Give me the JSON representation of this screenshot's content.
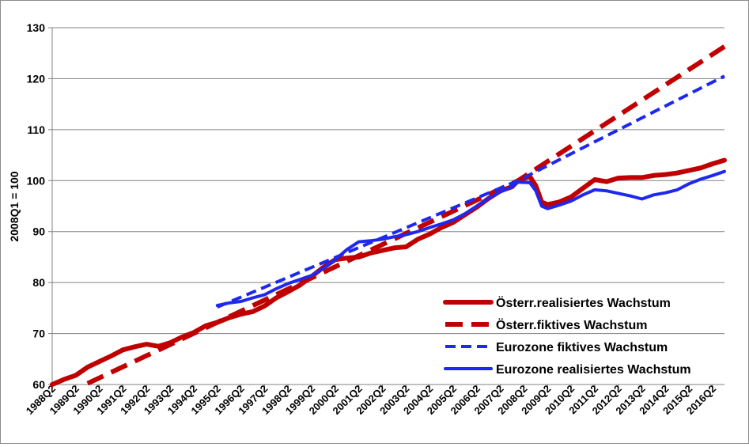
{
  "chart_data": {
    "type": "line",
    "title": "",
    "xlabel": "",
    "ylabel": "2008Q1 = 100",
    "ylim": [
      60,
      130
    ],
    "yticks": [
      60,
      70,
      80,
      90,
      100,
      110,
      120,
      130
    ],
    "grid": "horizontal",
    "legend_position": "bottom-right",
    "x_tick_labels": [
      "1988Q2",
      "1989Q2",
      "1990Q2",
      "1991Q2",
      "1992Q2",
      "1993Q2",
      "1994Q2",
      "1995Q2",
      "1996Q2",
      "1997Q2",
      "1998Q2",
      "1999Q2",
      "2000Q2",
      "2001Q2",
      "2002Q2",
      "2003Q2",
      "2004Q2",
      "2005Q2",
      "2006Q2",
      "2007Q2",
      "2008Q2",
      "2009Q2",
      "2010Q2",
      "2011Q2",
      "2012Q2",
      "2013Q2",
      "2014Q2",
      "2015Q2",
      "2016Q2"
    ],
    "series": [
      {
        "name": "Österr.realisiertes Wachstum",
        "color": "#c00000",
        "style": "solid-thick",
        "points": [
          [
            "1988Q2",
            60.0
          ],
          [
            "1988Q4",
            61.0
          ],
          [
            "1989Q2",
            61.8
          ],
          [
            "1989Q4",
            63.4
          ],
          [
            "1990Q2",
            64.5
          ],
          [
            "1990Q4",
            65.6
          ],
          [
            "1991Q2",
            66.8
          ],
          [
            "1991Q4",
            67.4
          ],
          [
            "1992Q2",
            67.9
          ],
          [
            "1992Q4",
            67.5
          ],
          [
            "1993Q2",
            68.2
          ],
          [
            "1993Q4",
            69.3
          ],
          [
            "1994Q2",
            70.2
          ],
          [
            "1994Q4",
            71.5
          ],
          [
            "1995Q2",
            72.2
          ],
          [
            "1995Q4",
            73.1
          ],
          [
            "1996Q2",
            73.8
          ],
          [
            "1996Q4",
            74.3
          ],
          [
            "1997Q2",
            75.4
          ],
          [
            "1997Q4",
            77.0
          ],
          [
            "1998Q2",
            78.2
          ],
          [
            "1998Q4",
            79.5
          ],
          [
            "1999Q2",
            81.2
          ],
          [
            "1999Q4",
            83.0
          ],
          [
            "2000Q2",
            84.5
          ],
          [
            "2000Q4",
            84.8
          ],
          [
            "2001Q2",
            85.0
          ],
          [
            "2001Q4",
            85.8
          ],
          [
            "2002Q2",
            86.3
          ],
          [
            "2002Q4",
            86.8
          ],
          [
            "2003Q2",
            87.0
          ],
          [
            "2003Q4",
            88.5
          ],
          [
            "2004Q2",
            89.5
          ],
          [
            "2004Q4",
            90.8
          ],
          [
            "2005Q2",
            91.8
          ],
          [
            "2005Q4",
            93.3
          ],
          [
            "2006Q2",
            94.8
          ],
          [
            "2006Q4",
            96.5
          ],
          [
            "2007Q2",
            98.0
          ],
          [
            "2007Q4",
            98.8
          ],
          [
            "2008Q1",
            100.0
          ],
          [
            "2008Q3",
            100.8
          ],
          [
            "2008Q4",
            99.0
          ],
          [
            "2009Q1",
            95.8
          ],
          [
            "2009Q2",
            95.3
          ],
          [
            "2009Q4",
            95.8
          ],
          [
            "2010Q2",
            96.8
          ],
          [
            "2010Q4",
            98.5
          ],
          [
            "2011Q2",
            100.2
          ],
          [
            "2011Q4",
            99.8
          ],
          [
            "2012Q2",
            100.5
          ],
          [
            "2012Q4",
            100.6
          ],
          [
            "2013Q2",
            100.6
          ],
          [
            "2013Q4",
            101.0
          ],
          [
            "2014Q2",
            101.2
          ],
          [
            "2014Q4",
            101.5
          ],
          [
            "2015Q2",
            102.0
          ],
          [
            "2015Q4",
            102.5
          ],
          [
            "2016Q2",
            103.3
          ],
          [
            "2016Q4",
            104.0
          ]
        ]
      },
      {
        "name": "Österr.fiktives Wachstum",
        "color": "#c00000",
        "style": "dashed-thick",
        "points": [
          [
            "1989Q4",
            60.2
          ],
          [
            "2008Q1",
            100.0
          ],
          [
            "2016Q4",
            126.3
          ]
        ]
      },
      {
        "name": "Eurozone fiktives Wachstum",
        "color": "#1e28f0",
        "style": "dashed",
        "points": [
          [
            "1995Q2",
            75.2
          ],
          [
            "2008Q1",
            100.0
          ],
          [
            "2016Q4",
            120.5
          ]
        ]
      },
      {
        "name": "Eurozone realisiertes Wachstum",
        "color": "#1e28f0",
        "style": "solid",
        "points": [
          [
            "1995Q2",
            75.5
          ],
          [
            "1995Q4",
            76.0
          ],
          [
            "1996Q2",
            76.3
          ],
          [
            "1996Q4",
            77.0
          ],
          [
            "1997Q2",
            77.6
          ],
          [
            "1997Q4",
            78.8
          ],
          [
            "1998Q2",
            79.8
          ],
          [
            "1998Q4",
            80.6
          ],
          [
            "1999Q2",
            81.4
          ],
          [
            "1999Q4",
            82.8
          ],
          [
            "2000Q2",
            84.5
          ],
          [
            "2000Q4",
            86.5
          ],
          [
            "2001Q2",
            88.0
          ],
          [
            "2001Q4",
            88.2
          ],
          [
            "2002Q2",
            88.5
          ],
          [
            "2002Q4",
            89.0
          ],
          [
            "2003Q2",
            89.4
          ],
          [
            "2003Q4",
            90.0
          ],
          [
            "2004Q2",
            90.8
          ],
          [
            "2004Q4",
            91.5
          ],
          [
            "2005Q2",
            92.3
          ],
          [
            "2005Q4",
            93.5
          ],
          [
            "2006Q2",
            95.0
          ],
          [
            "2006Q4",
            96.5
          ],
          [
            "2007Q2",
            97.8
          ],
          [
            "2007Q4",
            98.8
          ],
          [
            "2008Q1",
            99.7
          ],
          [
            "2008Q3",
            99.6
          ],
          [
            "2008Q4",
            98.0
          ],
          [
            "2009Q1",
            95.0
          ],
          [
            "2009Q2",
            94.5
          ],
          [
            "2009Q4",
            95.2
          ],
          [
            "2010Q2",
            96.0
          ],
          [
            "2010Q4",
            97.2
          ],
          [
            "2011Q2",
            98.2
          ],
          [
            "2011Q4",
            98.0
          ],
          [
            "2012Q2",
            97.5
          ],
          [
            "2012Q4",
            97.0
          ],
          [
            "2013Q2",
            96.4
          ],
          [
            "2013Q4",
            97.2
          ],
          [
            "2014Q2",
            97.6
          ],
          [
            "2014Q4",
            98.2
          ],
          [
            "2015Q2",
            99.4
          ],
          [
            "2015Q4",
            100.3
          ],
          [
            "2016Q2",
            101.0
          ],
          [
            "2016Q4",
            101.8
          ]
        ]
      }
    ]
  }
}
